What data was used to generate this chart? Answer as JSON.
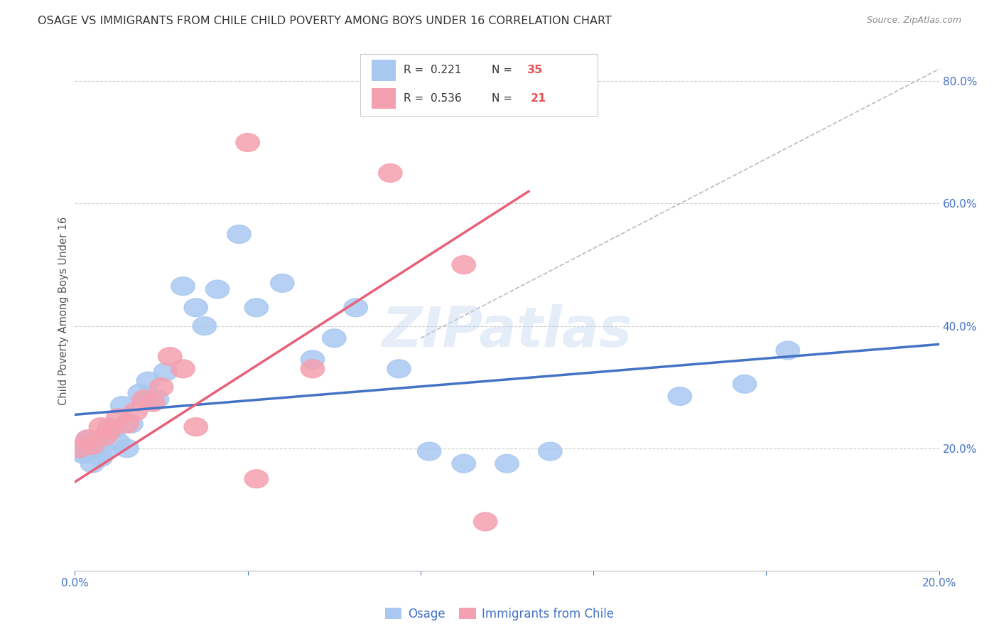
{
  "title": "OSAGE VS IMMIGRANTS FROM CHILE CHILD POVERTY AMONG BOYS UNDER 16 CORRELATION CHART",
  "source": "Source: ZipAtlas.com",
  "ylabel": "Child Poverty Among Boys Under 16",
  "x_min": 0.0,
  "x_max": 0.2,
  "y_min": 0.0,
  "y_max": 0.85,
  "x_ticks": [
    0.0,
    0.04,
    0.08,
    0.12,
    0.16,
    0.2
  ],
  "x_tick_labels": [
    "0.0%",
    "",
    "",
    "",
    "",
    "20.0%"
  ],
  "y_ticks_right": [
    0.2,
    0.4,
    0.6,
    0.8
  ],
  "y_tick_labels_right": [
    "20.0%",
    "40.0%",
    "60.0%",
    "80.0%"
  ],
  "grid_color": "#cccccc",
  "background_color": "#ffffff",
  "title_color": "#333333",
  "title_fontsize": 11.5,
  "source_fontsize": 9,
  "watermark": "ZIPatlas",
  "color_osage": "#a8c8f0",
  "color_chile": "#f5a0b0",
  "color_osage_line": "#4472c4",
  "color_chile_line": "#e8607a",
  "color_diag_line": "#bbbbbb",
  "osage_x": [
    0.001,
    0.002,
    0.003,
    0.004,
    0.005,
    0.006,
    0.007,
    0.008,
    0.009,
    0.01,
    0.011,
    0.012,
    0.013,
    0.015,
    0.017,
    0.019,
    0.021,
    0.025,
    0.028,
    0.03,
    0.033,
    0.038,
    0.042,
    0.048,
    0.055,
    0.06,
    0.065,
    0.075,
    0.082,
    0.09,
    0.1,
    0.11,
    0.14,
    0.155,
    0.165
  ],
  "osage_y": [
    0.195,
    0.19,
    0.215,
    0.175,
    0.205,
    0.185,
    0.195,
    0.235,
    0.23,
    0.21,
    0.27,
    0.2,
    0.24,
    0.29,
    0.31,
    0.28,
    0.325,
    0.465,
    0.43,
    0.4,
    0.46,
    0.55,
    0.43,
    0.47,
    0.345,
    0.38,
    0.43,
    0.33,
    0.195,
    0.175,
    0.175,
    0.195,
    0.285,
    0.305,
    0.36
  ],
  "chile_x": [
    0.001,
    0.003,
    0.004,
    0.006,
    0.007,
    0.008,
    0.01,
    0.012,
    0.014,
    0.016,
    0.018,
    0.02,
    0.022,
    0.025,
    0.028,
    0.04,
    0.042,
    0.055,
    0.073,
    0.09,
    0.095
  ],
  "chile_y": [
    0.2,
    0.215,
    0.205,
    0.235,
    0.22,
    0.23,
    0.25,
    0.24,
    0.26,
    0.28,
    0.275,
    0.3,
    0.35,
    0.33,
    0.235,
    0.7,
    0.15,
    0.33,
    0.65,
    0.5,
    0.08
  ],
  "osage_trend_x": [
    0.0,
    0.2
  ],
  "osage_trend_y": [
    0.255,
    0.37
  ],
  "chile_trend_x": [
    0.0,
    0.105
  ],
  "chile_trend_y": [
    0.145,
    0.62
  ],
  "diag_line_x": [
    0.08,
    0.2
  ],
  "diag_line_y": [
    0.38,
    0.82
  ]
}
